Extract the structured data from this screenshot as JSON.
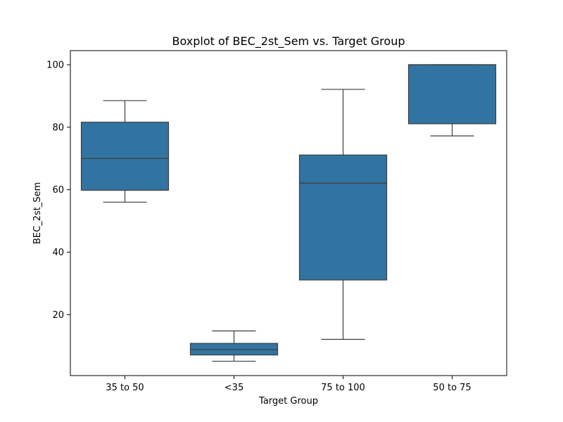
{
  "chart_data": {
    "type": "boxplot",
    "title": "Boxplot of BEC_2st_Sem vs. Target Group",
    "xlabel": "Target Group",
    "ylabel": "BEC_2st_Sem",
    "categories": [
      "35 to 50",
      "<35",
      "75 to 100",
      "50 to 75"
    ],
    "boxes": [
      {
        "category": "35 to 50",
        "whisker_low": 56,
        "q1": 59.8,
        "median": 70,
        "q3": 81.6,
        "whisker_high": 88.5
      },
      {
        "category": "<35",
        "whisker_low": 5.1,
        "q1": 7.1,
        "median": 8.8,
        "q3": 10.8,
        "whisker_high": 14.8
      },
      {
        "category": "75 to 100",
        "whisker_low": 12.1,
        "q1": 31.1,
        "median": 62.1,
        "q3": 71.1,
        "whisker_high": 92.1
      },
      {
        "category": "50 to 75",
        "whisker_low": 77.2,
        "q1": 81.1,
        "median": 100,
        "q3": 100,
        "whisker_high": 100
      }
    ],
    "yticks": [
      20,
      40,
      60,
      80,
      100
    ],
    "ylim": [
      0.5,
      104.5
    ],
    "grid": false,
    "box_color": "#3274a1",
    "line_color": "#3d3d3d"
  }
}
